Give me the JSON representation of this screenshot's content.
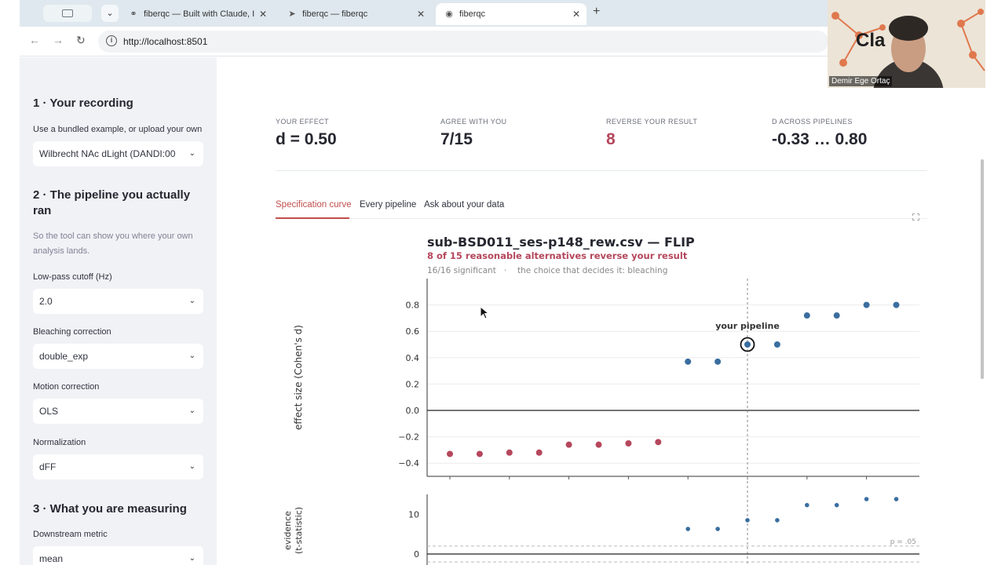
{
  "browser": {
    "tabs": [
      {
        "title": "fiberqc — Built with Claude, I",
        "active": false
      },
      {
        "title": "fiberqc — fiberqc",
        "active": false
      },
      {
        "title": "fiberqc",
        "active": true
      }
    ],
    "url": "http://localhost:8501"
  },
  "video": {
    "name": "Demir Ege Ortaç",
    "logo_text": "Cla"
  },
  "sidebar": {
    "section1": {
      "heading": "1 · Your recording",
      "caption": "Use a bundled example, or upload your own",
      "select_value": "Wilbrecht NAc dLight (DANDI:00"
    },
    "section2": {
      "heading": "2 · The pipeline you actually ran",
      "note": "So the tool can show you where your own analysis lands."
    },
    "fields": [
      {
        "label": "Low-pass cutoff (Hz)",
        "value": "2.0"
      },
      {
        "label": "Bleaching correction",
        "value": "double_exp"
      },
      {
        "label": "Motion correction",
        "value": "OLS"
      },
      {
        "label": "Normalization",
        "value": "dFF"
      }
    ],
    "section3": {
      "heading": "3 · What you are measuring",
      "caption": "Downstream metric",
      "select_value": "mean"
    }
  },
  "metrics": [
    {
      "label": "YOUR EFFECT",
      "value": "d = 0.50"
    },
    {
      "label": "AGREE WITH YOU",
      "value": "7/15"
    },
    {
      "label": "REVERSE YOUR RESULT",
      "value": "8"
    },
    {
      "label": "D ACROSS PIPELINES",
      "value": "-0.33 … 0.80"
    }
  ],
  "tabs": [
    "Specification curve",
    "Every pipeline",
    "Ask about your data"
  ],
  "colors": {
    "accent": "#c0504d",
    "reverse": "#b5475c",
    "agree": "#3a6e9f"
  },
  "chart_data": {
    "type": "scatter",
    "title": "sub-BSD011_ses-p148_rew.csv  —  FLIP",
    "subtitle": "8 of 15 reasonable alternatives reverse your result",
    "info_left": "16/16 significant",
    "info_sep": "·",
    "info_right": "the choice that decides it: bleaching",
    "ylabel": "effect size  (Cohen's d)",
    "ylim": [
      -0.5,
      1.0
    ],
    "yticks": [
      "0.8",
      "0.6",
      "0.4",
      "0.2",
      "0.0",
      "−0.2",
      "−0.4"
    ],
    "annotation": "your pipeline",
    "your_pipeline_index": 11,
    "x": [
      1,
      2,
      3,
      4,
      5,
      6,
      7,
      8,
      9,
      10,
      11,
      12,
      13,
      14,
      15,
      16
    ],
    "values": [
      -0.33,
      -0.33,
      -0.32,
      -0.32,
      -0.26,
      -0.26,
      -0.25,
      -0.24,
      0.37,
      0.37,
      0.5,
      0.5,
      0.72,
      0.72,
      0.8,
      0.8
    ],
    "lower_panel": {
      "ylabel_line1": "evidence",
      "ylabel_line2": "(t-statistic)",
      "yticks": [
        "10",
        "0"
      ],
      "threshold_label": "p = .05",
      "values": [
        null,
        null,
        null,
        null,
        null,
        null,
        null,
        null,
        6.3,
        6.3,
        8.5,
        8.5,
        12.3,
        12.3,
        13.8,
        13.8
      ]
    }
  }
}
